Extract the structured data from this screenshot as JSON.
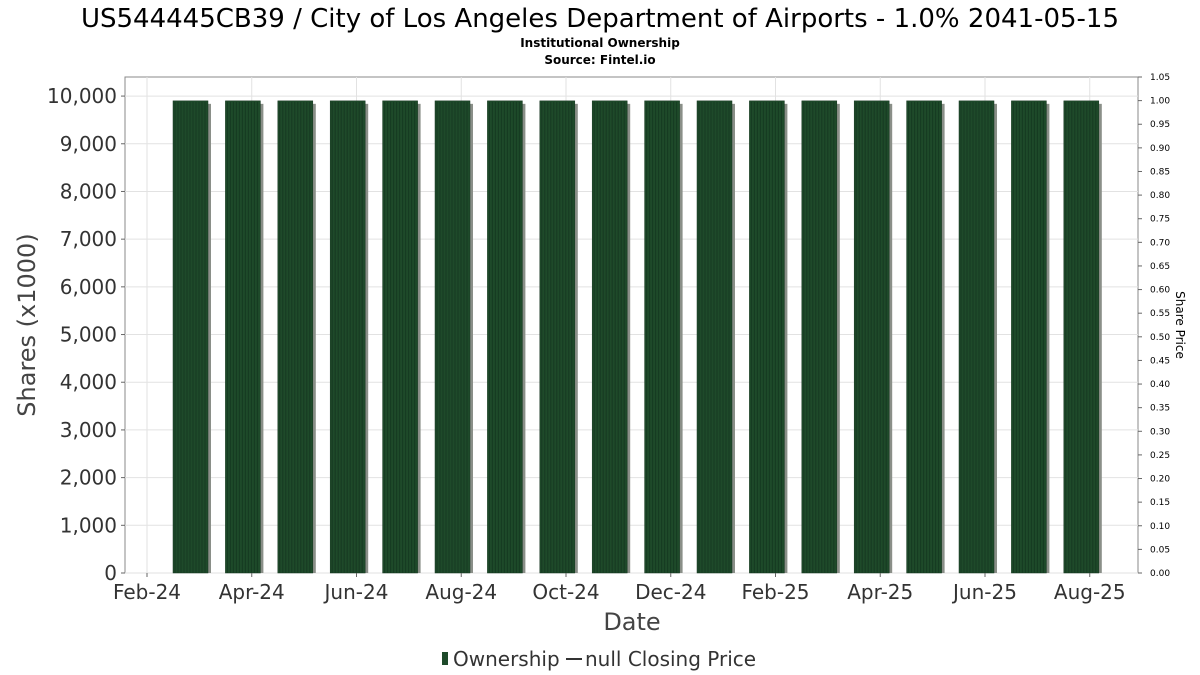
{
  "chart_data": {
    "type": "bar",
    "title": "US544445CB39 / City of Los Angeles Department of Airports - 1.0% 2041-05-15",
    "subtitle": "Institutional Ownership",
    "source": "Source: Fintel.io",
    "xlabel": "Date",
    "ylabel": "Shares (x1000)",
    "y2label": "Share Price",
    "x_ticks": [
      "Feb-24",
      "Apr-24",
      "Jun-24",
      "Aug-24",
      "Oct-24",
      "Dec-24",
      "Feb-25",
      "Apr-25",
      "Jun-25",
      "Aug-25"
    ],
    "ylim": [
      0,
      10400
    ],
    "yticks": [
      0,
      1000,
      2000,
      3000,
      4000,
      5000,
      6000,
      7000,
      8000,
      9000,
      10000
    ],
    "y2lim": [
      0,
      1.05
    ],
    "y2ticks": [
      0.0,
      0.05,
      0.1,
      0.15,
      0.2,
      0.25,
      0.3,
      0.35,
      0.4,
      0.45,
      0.5,
      0.55,
      0.6,
      0.65,
      0.7,
      0.75,
      0.8,
      0.85,
      0.9,
      0.95,
      1.0,
      1.05
    ],
    "series": [
      {
        "name": "Ownership",
        "color": "#1e4a2a",
        "categories": [
          "Mar-24",
          "Apr-24",
          "May-24",
          "Jun-24",
          "Jul-24",
          "Aug-24",
          "Sep-24",
          "Oct-24",
          "Nov-24",
          "Dec-24",
          "Jan-25",
          "Feb-25",
          "Mar-25",
          "Apr-25",
          "May-25",
          "Jun-25",
          "Jul-25",
          "Aug-25"
        ],
        "values": [
          9900,
          9900,
          9900,
          9900,
          9900,
          9900,
          9900,
          9900,
          9900,
          9900,
          9900,
          9900,
          9900,
          9900,
          9900,
          9900,
          9900,
          9900
        ]
      },
      {
        "name": "null Closing Price",
        "color": "#333333",
        "values": []
      }
    ],
    "legend": [
      "Ownership",
      "null Closing Price"
    ],
    "grid": true
  }
}
